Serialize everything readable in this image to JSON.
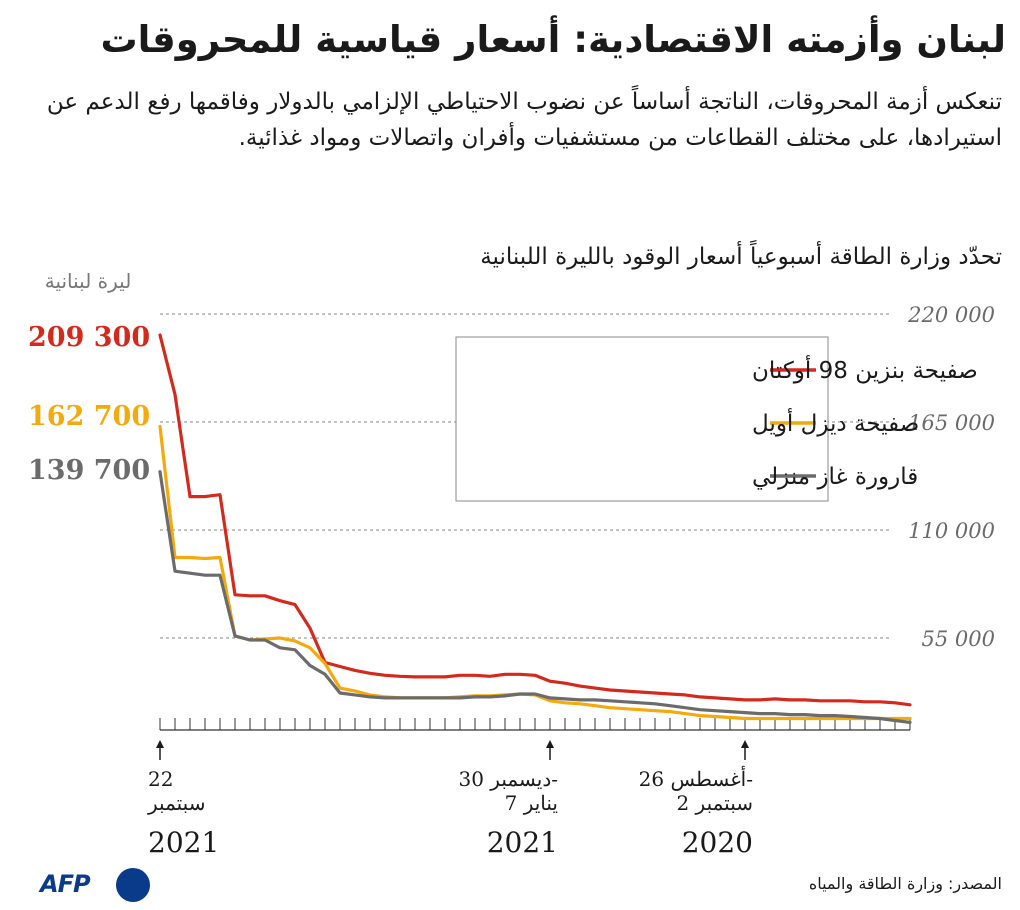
{
  "header": {
    "title": "لبنان وأزمته الاقتصادية: أسعار قياسية للمحروقات",
    "subtitle": "تنعكس أزمة المحروقات، الناتجة أساساً عن نضوب الاحتياطي الإلزامي بالدولار وفاقمها رفع الدعم عن استيرادها، على مختلف القطاعات من مستشفيات وأفران واتصالات ومواد غذائية.",
    "note": "تحدّد وزارة الطاقة أسبوعياً أسعار الوقود بالليرة اللبنانية"
  },
  "chart_data": {
    "type": "line",
    "unit_label": "ليرة لبنانية",
    "ylim": [
      0,
      220000
    ],
    "yticks": [
      {
        "value": 55000,
        "label": "55 000"
      },
      {
        "value": 110000,
        "label": "110 000"
      },
      {
        "value": 165000,
        "label": "165 000"
      },
      {
        "value": 220000,
        "label": "220 000"
      }
    ],
    "grid": true,
    "legend_position": "top-right",
    "tick_count": 51,
    "x_labels": [
      {
        "index": 0,
        "lines": [
          "22",
          "سبتمبر"
        ],
        "year": "2021"
      },
      {
        "index": 26,
        "lines": [
          "30 ديسمبر-",
          "7 يناير"
        ],
        "year": "2021"
      },
      {
        "index": 39,
        "lines": [
          "26 أغسطس-",
          "2 سبتمبر"
        ],
        "year": "2020"
      }
    ],
    "series": [
      {
        "name": "صفيحة بنزين 98 أوكتان",
        "color": "#d42a1e",
        "last_label": "209 300",
        "values": [
          209300,
          179000,
          127000,
          127000,
          128000,
          77000,
          76500,
          76500,
          74000,
          72000,
          60000,
          42500,
          40500,
          38500,
          37000,
          36000,
          35500,
          35200,
          35200,
          35200,
          36000,
          36000,
          35500,
          36500,
          36500,
          36000,
          33000,
          32000,
          30500,
          29500,
          28500,
          28000,
          27500,
          27000,
          26500,
          26000,
          25000,
          24500,
          24000,
          23500,
          23500,
          24000,
          23500,
          23500,
          23000,
          23000,
          23000,
          22500,
          22500,
          22000,
          21000
        ]
      },
      {
        "name": "صفيحة ديزل أويل",
        "color": "#f4a90c",
        "last_label": "162 700",
        "values": [
          162700,
          96000,
          96000,
          95500,
          96000,
          56000,
          54000,
          54500,
          55000,
          53500,
          50000,
          42000,
          29500,
          28000,
          26000,
          25000,
          24500,
          24500,
          24500,
          24500,
          25000,
          25500,
          25500,
          26000,
          26500,
          26000,
          23000,
          22000,
          21500,
          20500,
          19500,
          19000,
          18500,
          18000,
          17500,
          16500,
          15500,
          15000,
          14500,
          14000,
          14000,
          14000,
          14000,
          14000,
          14000,
          14000,
          14000,
          14000,
          14000,
          14000,
          14000
        ]
      },
      {
        "name": "قارورة غاز منزلي",
        "color": "#6b6b6b",
        "last_label": "139 700",
        "values": [
          139700,
          89000,
          88000,
          87000,
          87000,
          56000,
          54000,
          54000,
          50000,
          49000,
          41000,
          36500,
          27000,
          26000,
          25000,
          24500,
          24500,
          24500,
          24500,
          24500,
          24500,
          25000,
          25000,
          25500,
          26500,
          26500,
          24500,
          24000,
          23500,
          23500,
          23000,
          22500,
          22000,
          21500,
          20500,
          19500,
          18500,
          18000,
          17500,
          17000,
          16500,
          16500,
          16000,
          16000,
          15500,
          15500,
          15000,
          14500,
          14000,
          13000,
          12000
        ]
      }
    ]
  },
  "footer": {
    "source": "المصدر: وزارة الطاقة والمياه",
    "logo_text": "AFP"
  }
}
